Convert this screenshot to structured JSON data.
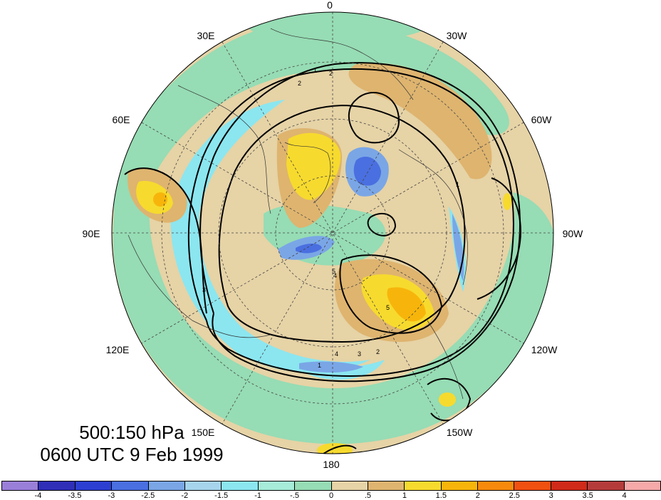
{
  "title": {
    "level": "500:150 hPa",
    "time": "0600 UTC 9 Feb 1999"
  },
  "longitude_labels": [
    "0",
    "30W",
    "60W",
    "90W",
    "120W",
    "150W",
    "180",
    "150E",
    "120E",
    "90E",
    "60E",
    "30E"
  ],
  "colorbar": {
    "colors": [
      "#9a7fd9",
      "#2f2fb8",
      "#2c3fd1",
      "#4a6fe0",
      "#7aa6e6",
      "#a6d4ec",
      "#8be6f0",
      "#a6ecd8",
      "#96dcb4",
      "#e6d3a6",
      "#deb46f",
      "#f7da2e",
      "#f7b50b",
      "#f78a0c",
      "#f05010",
      "#cf2a1a",
      "#b53b3b",
      "#f5a9a9"
    ],
    "labels": [
      "-4",
      "-3.5",
      "-3",
      "-2.5",
      "-2",
      "-1.5",
      "-1",
      "-.5",
      "0",
      ".5",
      "1",
      "1.5",
      "2",
      "2.5",
      "3",
      "3.5",
      "4"
    ]
  },
  "contour_labels": [
    "1",
    "2",
    "2",
    "3",
    "4",
    "5",
    "1",
    "2",
    "3",
    "4",
    "5",
    "1"
  ],
  "colors": {
    "land_tan": "#e6d3a6",
    "ocean_green": "#96dcb4",
    "light_blue": "#8be6f0",
    "deep_tan": "#deb46f",
    "yellow": "#f7da2e",
    "orange": "#f7b50b",
    "blue": "#4a6fe0",
    "lavender": "#7aa6e6"
  }
}
